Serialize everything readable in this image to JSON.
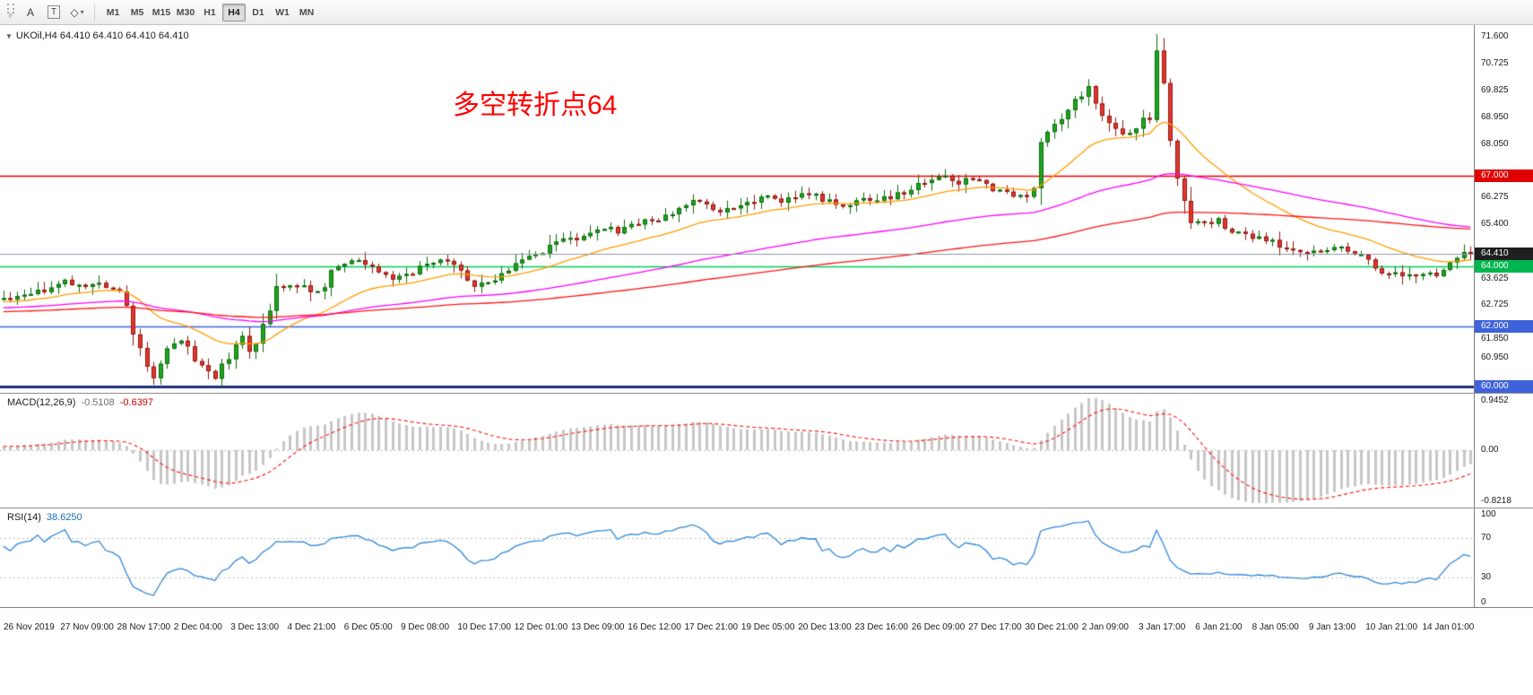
{
  "toolbar": {
    "grip_label": "F",
    "tools": [
      {
        "label": "A"
      },
      {
        "label": "T"
      },
      {
        "label": "◇"
      }
    ],
    "dropdown_caret": "▾",
    "timeframes": [
      {
        "label": "M1",
        "active": false
      },
      {
        "label": "M5",
        "active": false
      },
      {
        "label": "M15",
        "active": false
      },
      {
        "label": "M30",
        "active": false
      },
      {
        "label": "H1",
        "active": false
      },
      {
        "label": "H4",
        "active": true
      },
      {
        "label": "D1",
        "active": false
      },
      {
        "label": "W1",
        "active": false
      },
      {
        "label": "MN",
        "active": false
      }
    ]
  },
  "chart": {
    "symbol_label": "UKOil,H4 64.410 64.410 64.410 64.410",
    "annotation": {
      "text": "多空转折点64",
      "color": "#ff0000"
    },
    "price_axis": {
      "min": 59.8,
      "max": 72.0,
      "ticks": [
        {
          "v": 71.6,
          "t": "71.600"
        },
        {
          "v": 70.725,
          "t": "70.725"
        },
        {
          "v": 69.825,
          "t": "69.825"
        },
        {
          "v": 68.95,
          "t": "68.950"
        },
        {
          "v": 68.05,
          "t": "68.050"
        },
        {
          "v": 66.275,
          "t": "66.275"
        },
        {
          "v": 65.4,
          "t": "65.400"
        },
        {
          "v": 63.625,
          "t": "63.625"
        },
        {
          "v": 62.725,
          "t": "62.725"
        },
        {
          "v": 61.85,
          "t": "61.850"
        },
        {
          "v": 60.95,
          "t": "60.950"
        }
      ]
    },
    "hlines": [
      {
        "price": 67.0,
        "label": "67.000",
        "color": "#f00000",
        "tag_bg": "#e00000",
        "w": 1.4
      },
      {
        "price": 64.0,
        "label": "64.000",
        "color": "#00ce58",
        "tag_bg": "#00b64e",
        "w": 1.6
      },
      {
        "price": 62.0,
        "label": "62.000",
        "color": "#3e62d9",
        "tag_bg": "#3e62d9",
        "w": 1.6
      },
      {
        "price": 60.0,
        "label": "60.000",
        "color": "#1e2f7d",
        "tag_bg": "#3e62d9",
        "w": 3
      }
    ],
    "bid": {
      "value": 64.41,
      "label": "64.410",
      "line_color": "#8f98a8",
      "tag_bg": "#1f1f1f"
    },
    "candles": {
      "seed": 20200114,
      "count": 216,
      "lead_in": 80,
      "lead_start": 62.25,
      "up_fill": "#1fa51f",
      "up_stroke": "#0b6b0b",
      "down_fill": "#e2372f",
      "down_stroke": "#8f1710",
      "anchors": [
        [
          0,
          62.9
        ],
        [
          3,
          63.05
        ],
        [
          6,
          63.2
        ],
        [
          9,
          63.55
        ],
        [
          12,
          63.3
        ],
        [
          14,
          63.45
        ],
        [
          17,
          63.2
        ],
        [
          19,
          61.8
        ],
        [
          21,
          60.6
        ],
        [
          22,
          60.35
        ],
        [
          24,
          61.1
        ],
        [
          26,
          61.6
        ],
        [
          28,
          60.9
        ],
        [
          30,
          60.5
        ],
        [
          31,
          60.3
        ],
        [
          33,
          61.0
        ],
        [
          35,
          61.6
        ],
        [
          36,
          61.2
        ],
        [
          38,
          62.0
        ],
        [
          40,
          63.15
        ],
        [
          42,
          63.3
        ],
        [
          44,
          63.35
        ],
        [
          46,
          63.1
        ],
        [
          48,
          63.8
        ],
        [
          52,
          64.25
        ],
        [
          54,
          64.0
        ],
        [
          57,
          63.5
        ],
        [
          60,
          63.8
        ],
        [
          64,
          64.3
        ],
        [
          66,
          64.15
        ],
        [
          69,
          63.35
        ],
        [
          72,
          63.6
        ],
        [
          76,
          64.15
        ],
        [
          78,
          64.35
        ],
        [
          82,
          64.85
        ],
        [
          84,
          64.95
        ],
        [
          88,
          65.3
        ],
        [
          90,
          65.15
        ],
        [
          94,
          65.55
        ],
        [
          96,
          65.5
        ],
        [
          100,
          66.05
        ],
        [
          102,
          66.2
        ],
        [
          105,
          65.8
        ],
        [
          108,
          66.05
        ],
        [
          112,
          66.3
        ],
        [
          114,
          66.15
        ],
        [
          118,
          66.4
        ],
        [
          120,
          66.25
        ],
        [
          123,
          66.0
        ],
        [
          126,
          66.2
        ],
        [
          130,
          66.3
        ],
        [
          133,
          66.55
        ],
        [
          136,
          66.9
        ],
        [
          138,
          67.0
        ],
        [
          140,
          66.75
        ],
        [
          142,
          66.9
        ],
        [
          144,
          66.7
        ],
        [
          147,
          66.4
        ],
        [
          149,
          66.3
        ],
        [
          151,
          66.5
        ],
        [
          152,
          68.3
        ],
        [
          154,
          68.6
        ],
        [
          156,
          69.2
        ],
        [
          158,
          69.7
        ],
        [
          159,
          70.05
        ],
        [
          160,
          69.4
        ],
        [
          162,
          68.7
        ],
        [
          164,
          68.3
        ],
        [
          166,
          68.6
        ],
        [
          168,
          69.0
        ],
        [
          169,
          71.2
        ],
        [
          170,
          70.0
        ],
        [
          171,
          68.2
        ],
        [
          172,
          66.9
        ],
        [
          173,
          66.1
        ],
        [
          174,
          65.6
        ],
        [
          176,
          65.4
        ],
        [
          178,
          65.55
        ],
        [
          180,
          65.2
        ],
        [
          183,
          65.0
        ],
        [
          186,
          64.8
        ],
        [
          189,
          64.55
        ],
        [
          192,
          64.45
        ],
        [
          196,
          64.6
        ],
        [
          199,
          64.3
        ],
        [
          202,
          63.85
        ],
        [
          205,
          63.7
        ],
        [
          208,
          63.75
        ],
        [
          210,
          63.65
        ],
        [
          212,
          64.0
        ],
        [
          214,
          64.45
        ],
        [
          215,
          64.41
        ]
      ]
    },
    "mas": [
      {
        "name": "ma-fast",
        "period": 21,
        "color": "#ff9d00"
      },
      {
        "name": "ma-mid",
        "period": 80,
        "color": "#ff00ff"
      },
      {
        "name": "ma-slow",
        "period": 160,
        "color": "#ff1414"
      }
    ]
  },
  "macd": {
    "label_name": "MACD(12,26,9)",
    "value_main": "-0.5108",
    "value_signal": "-0.6397",
    "fast": 12,
    "slow": 26,
    "signal": 9,
    "hist_color": "#c6c6c6",
    "signal_color": "#ff2020",
    "grid_color": "#bdbdbd",
    "axis": {
      "top": "0.9452",
      "zero": "0.00",
      "bottom": "-0.8218"
    }
  },
  "rsi": {
    "label_name": "RSI(14)",
    "value": "38.6250",
    "period": 14,
    "color": "#2f88d8",
    "grid_color": "#bdbdbd",
    "levels": [
      {
        "v": 100,
        "t": "100"
      },
      {
        "v": 70,
        "t": "70"
      },
      {
        "v": 30,
        "t": "30"
      },
      {
        "v": 0,
        "t": "0"
      }
    ]
  },
  "time_axis": {
    "labels": [
      "26 Nov 2019",
      "27 Nov 09:00",
      "28 Nov 17:00",
      "2 Dec 04:00",
      "3 Dec 13:00",
      "4 Dec 21:00",
      "6 Dec 05:00",
      "9 Dec 08:00",
      "10 Dec 17:00",
      "12 Dec 01:00",
      "13 Dec 09:00",
      "16 Dec 12:00",
      "17 Dec 21:00",
      "19 Dec 05:00",
      "20 Dec 13:00",
      "23 Dec 16:00",
      "26 Dec 09:00",
      "27 Dec 17:00",
      "30 Dec 21:00",
      "2 Jan 09:00",
      "3 Jan 17:00",
      "6 Jan 21:00",
      "8 Jan 05:00",
      "9 Jan 13:00",
      "10 Jan 21:00",
      "14 Jan 01:00"
    ]
  }
}
